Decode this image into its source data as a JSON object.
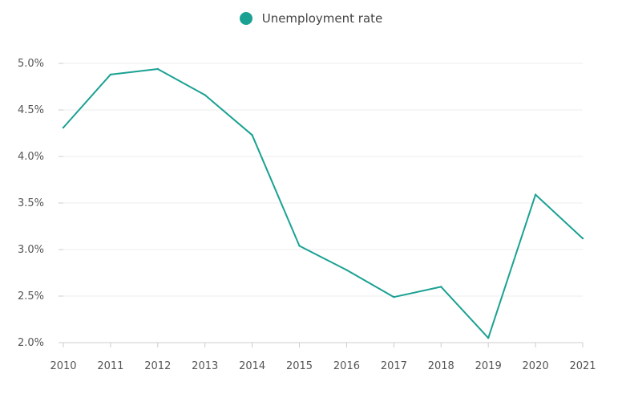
{
  "chart_data": {
    "type": "line",
    "x": [
      "2010",
      "2011",
      "2012",
      "2013",
      "2014",
      "2015",
      "2016",
      "2017",
      "2018",
      "2019",
      "2020",
      "2021"
    ],
    "series": [
      {
        "name": "Unemployment rate",
        "values": [
          4.31,
          4.88,
          4.94,
          4.66,
          4.23,
          3.04,
          2.78,
          2.49,
          2.6,
          2.05,
          3.59,
          3.12
        ],
        "color": "#1aa193"
      }
    ],
    "yticks": [
      "2.0%",
      "2.5%",
      "3.0%",
      "3.5%",
      "4.0%",
      "4.5%",
      "5.0%"
    ],
    "ytick_values": [
      2.0,
      2.5,
      3.0,
      3.5,
      4.0,
      4.5,
      5.0
    ],
    "ylim": [
      2.0,
      5.0
    ],
    "grid": true,
    "legend_position": "top-center",
    "title": "",
    "xlabel": "",
    "ylabel": ""
  },
  "colors": {
    "grid": "#ececec",
    "axis": "#cccccc",
    "text": "#555555"
  }
}
